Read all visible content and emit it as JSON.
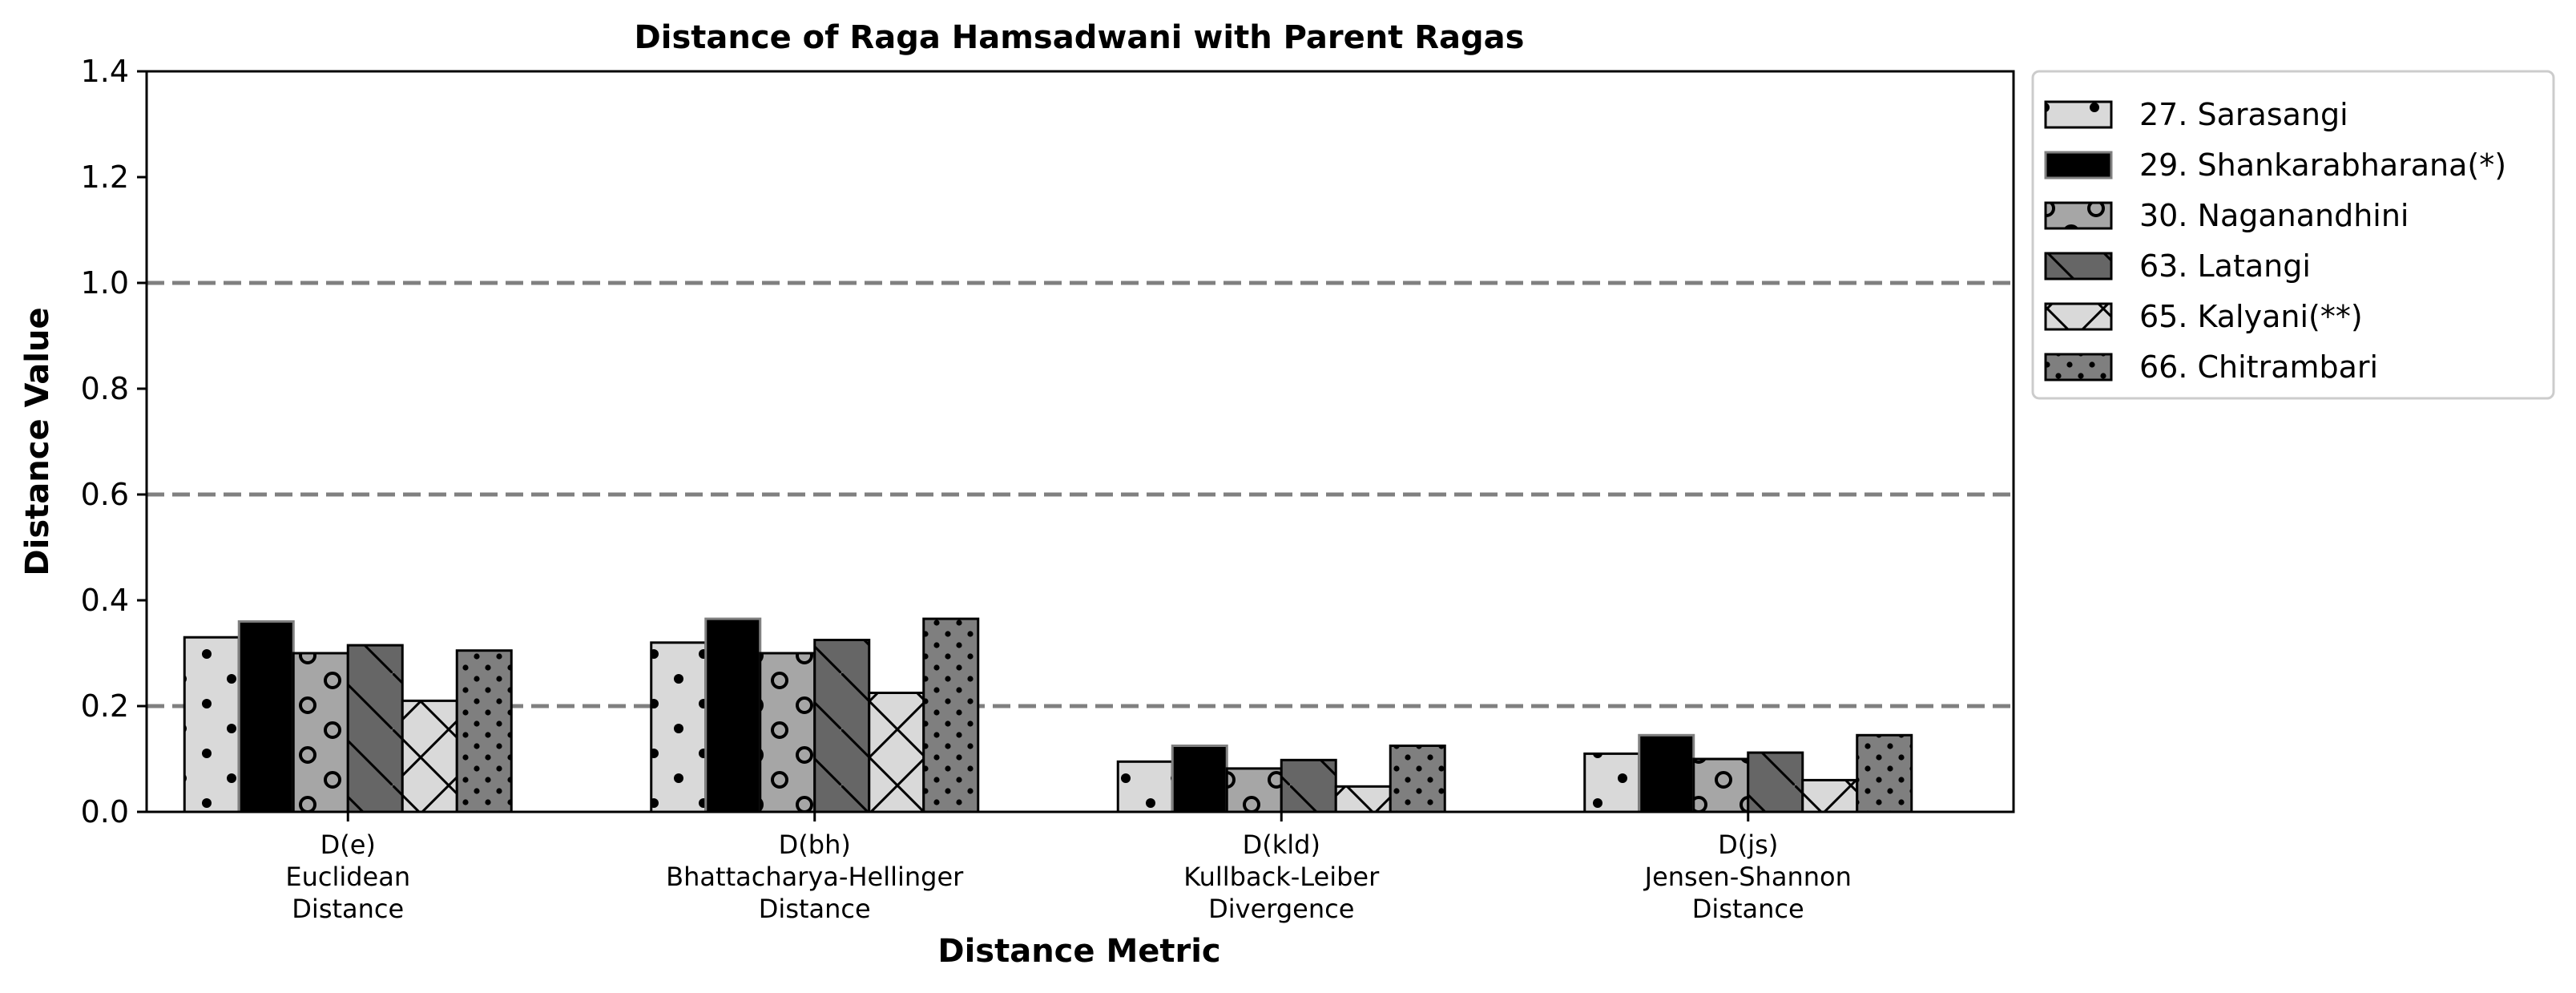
{
  "chart_data": {
    "type": "bar",
    "title": "Distance of Raga Hamsadwani with Parent Ragas",
    "xlabel": "Distance Metric",
    "ylabel": "Distance Value",
    "ylim": [
      0,
      1.4
    ],
    "yticks": [
      "0.0",
      "0.2",
      "0.4",
      "0.6",
      "0.8",
      "1.0",
      "1.2",
      "1.4"
    ],
    "reference_lines": [
      0.2,
      0.6,
      1.0
    ],
    "legend_position": "outside-top-right",
    "categories": [
      [
        "D(e)",
        "Euclidean",
        "Distance"
      ],
      [
        "D(bh)",
        "Bhattacharya-Hellinger",
        "Distance"
      ],
      [
        "D(kld)",
        "Kullback-Leiber",
        "Divergence"
      ],
      [
        "D(js)",
        "Jensen-Shannon",
        "Distance"
      ]
    ],
    "series": [
      {
        "name": "27. Sarasangi",
        "color": "#d9d9d9",
        "hatch": "dots-large",
        "values": [
          0.33,
          0.32,
          0.095,
          0.11
        ]
      },
      {
        "name": "29. Shankarabharana(*)",
        "color": "#000000",
        "hatch": "none",
        "values": [
          0.36,
          0.365,
          0.125,
          0.145
        ]
      },
      {
        "name": "30. Naganandhini",
        "color": "#a6a6a6",
        "hatch": "circles",
        "values": [
          0.3,
          0.3,
          0.082,
          0.1
        ]
      },
      {
        "name": "63. Latangi",
        "color": "#666666",
        "hatch": "backslash",
        "values": [
          0.315,
          0.325,
          0.098,
          0.112
        ]
      },
      {
        "name": "65. Kalyani(**)",
        "color": "#d9d9d9",
        "hatch": "cross",
        "values": [
          0.21,
          0.225,
          0.048,
          0.06
        ]
      },
      {
        "name": "66. Chitrambari",
        "color": "#7f7f7f",
        "hatch": "dots-small",
        "values": [
          0.305,
          0.365,
          0.125,
          0.145
        ]
      }
    ]
  }
}
